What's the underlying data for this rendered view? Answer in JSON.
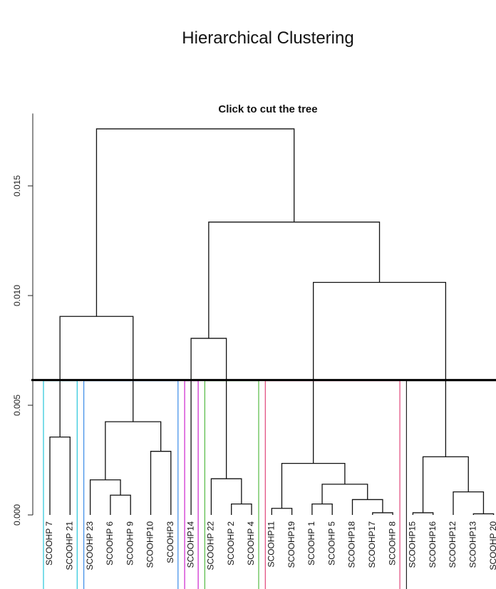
{
  "page": {
    "title": "Hierarchical Clustering"
  },
  "chart_data": {
    "type": "dendrogram",
    "title": "Click to cut the tree",
    "xlabel": "",
    "ylabel": "",
    "ylim": [
      0,
      0.0185
    ],
    "yticks": [
      0.0,
      0.005,
      0.01,
      0.015
    ],
    "ytick_labels": [
      "0.000",
      "0.005",
      "0.010",
      "0.015"
    ],
    "cut_height": 0.00615,
    "leaves": [
      "SCOOHP 7",
      "SCOOHP 21",
      "SCOOHP 23",
      "SCOOHP 6",
      "SCOOHP 9",
      "SCOOHP10",
      "SCOOHP3",
      "SCOOHP14",
      "SCOOHP 22",
      "SCOOHP 2",
      "SCOOHP 4",
      "SCOOHP11",
      "SCOOHP19",
      "SCOOHP 1",
      "SCOOHP 5",
      "SCOOHP18",
      "SCOOHP17",
      "SCOOHP 8",
      "SCOOHP15",
      "SCOOHP16",
      "SCOOHP12",
      "SCOOHP13",
      "SCOOHP 20"
    ],
    "merges": [
      {
        "left": "L0",
        "right": "L1",
        "height": 0.00355
      },
      {
        "left": "L3",
        "right": "L4",
        "height": 0.0009
      },
      {
        "left": "L2",
        "right": "M2",
        "height": 0.0016
      },
      {
        "left": "L5",
        "right": "L6",
        "height": 0.0029
      },
      {
        "left": "M3",
        "right": "M4",
        "height": 0.00425
      },
      {
        "left": "M1",
        "right": "M5",
        "height": 0.00905
      },
      {
        "left": "L9",
        "right": "L10",
        "height": 0.0005
      },
      {
        "left": "L8",
        "right": "M7",
        "height": 0.00165
      },
      {
        "left": "L7",
        "right": "M8",
        "height": 0.00805
      },
      {
        "left": "L11",
        "right": "L12",
        "height": 0.0003
      },
      {
        "left": "L13",
        "right": "L14",
        "height": 0.0005
      },
      {
        "left": "L16",
        "right": "L17",
        "height": 0.0001
      },
      {
        "left": "L15",
        "right": "M12",
        "height": 0.0007
      },
      {
        "left": "M11",
        "right": "M13",
        "height": 0.0014
      },
      {
        "left": "M10",
        "right": "M14",
        "height": 0.00235
      },
      {
        "left": "L18",
        "right": "L19",
        "height": 0.0001
      },
      {
        "left": "L21",
        "right": "L22",
        "height": 5e-05
      },
      {
        "left": "L20",
        "right": "M17",
        "height": 0.00105
      },
      {
        "left": "M16",
        "right": "M18",
        "height": 0.00265
      },
      {
        "left": "M15",
        "right": "M19",
        "height": 0.0106
      },
      {
        "left": "M9",
        "right": "M20",
        "height": 0.01335
      },
      {
        "left": "M6",
        "right": "M21",
        "height": 0.0176
      }
    ],
    "clusters": [
      {
        "from": 0,
        "to": 1,
        "color": "#26c6da"
      },
      {
        "from": 2,
        "to": 6,
        "color": "#3b8be8"
      },
      {
        "from": 7,
        "to": 7,
        "color": "#cc22cc"
      },
      {
        "from": 8,
        "to": 10,
        "color": "#55bb44"
      },
      {
        "from": 11,
        "to": 17,
        "color": "#e0457a"
      },
      {
        "from": 18,
        "to": 22,
        "color": "#222222"
      }
    ],
    "grid": false,
    "legend": "none"
  }
}
